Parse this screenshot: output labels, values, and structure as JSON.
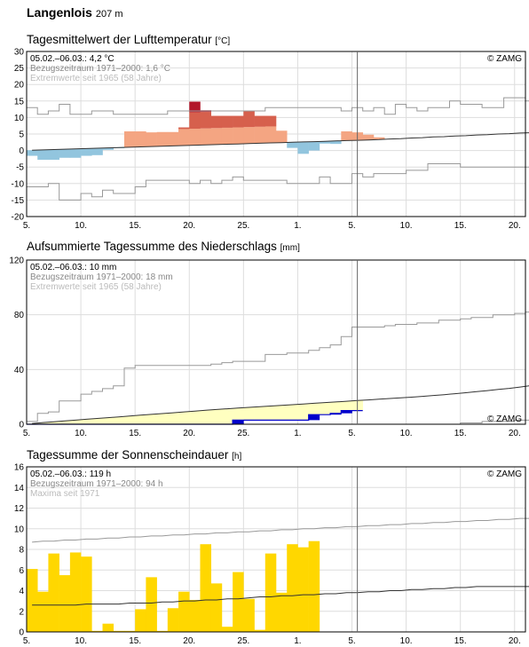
{
  "station": {
    "name": "Langenlois",
    "altitude": "207 m"
  },
  "panels": [
    {
      "id": "temp",
      "title": "Tagesmittelwert der Lufttemperatur",
      "unit": "[°C]",
      "legend": [
        "05.02.–06.03.: 4,2 °C",
        "Bezugszeitraum 1971–2000: 1,6 °C",
        "Extremwerte seit 1965 (58 Jahre)"
      ],
      "copyright": "© ZAMG"
    },
    {
      "id": "precip",
      "title": "Aufsummierte Tagessumme des Niederschlags",
      "unit": "[mm]",
      "legend": [
        "05.02.–06.03.: 10 mm",
        "Bezugszeitraum 1971–2000: 18 mm",
        "Extremwerte seit 1965 (58 Jahre)"
      ],
      "copyright": "© ZAMG"
    },
    {
      "id": "sun",
      "title": "Tagessumme der Sonnenscheindauer",
      "unit": "[h]",
      "legend": [
        "05.02.–06.03.: 119 h",
        "Bezugszeitraum 1971–2000: 94 h",
        "Maxima seit 1971"
      ],
      "copyright": "© ZAMG"
    }
  ],
  "colors": {
    "warm_light": "#f4a582",
    "warm_mid": "#d6604d",
    "warm_dark": "#b2182b",
    "cold": "#92c5de",
    "precip_fill": "#ffffc0",
    "precip_line": "#0000cc",
    "precip_bar": "#0000cc",
    "sun_bar": "#ffd700",
    "grid": "#dddddd"
  },
  "chart_data": [
    {
      "type": "bar",
      "x_tick_labels": [
        "5.",
        "10.",
        "15.",
        "20.",
        "25.",
        "1.",
        "5.",
        "10.",
        "15.",
        "20."
      ],
      "xlim_days": [
        0,
        46
      ],
      "today_marker_day": 30.5,
      "ylim": [
        -20,
        30
      ],
      "yticks": [
        -20,
        -15,
        -10,
        -5,
        0,
        5,
        10,
        15,
        20,
        25,
        30
      ],
      "values": [
        -1.6,
        -2.8,
        -2.8,
        -2.2,
        -2.2,
        -1.6,
        -1.4,
        0.2,
        0.7,
        5.8,
        5.8,
        5.5,
        5.6,
        5.6,
        7.0,
        14.8,
        12.2,
        10.5,
        10.5,
        10.5,
        12.0,
        10.5,
        10.5,
        6.0,
        0.8,
        -1.0,
        0.0,
        2.1,
        2.0,
        5.8,
        5.5,
        4.8,
        4.0
      ],
      "climate_mean": [
        0.1,
        0.2,
        0.3,
        0.4,
        0.5,
        0.6,
        0.7,
        0.8,
        0.9,
        1.0,
        1.1,
        1.2,
        1.3,
        1.4,
        1.5,
        1.6,
        1.7,
        1.8,
        1.9,
        2.0,
        2.1,
        2.2,
        2.3,
        2.4,
        2.5,
        2.6,
        2.7,
        2.8,
        2.9,
        3.0,
        3.1,
        3.2,
        3.3,
        3.5,
        3.6,
        3.8,
        3.9,
        4.1,
        4.2,
        4.4,
        4.5,
        4.7,
        4.8,
        5.0,
        5.1,
        5.3,
        5.4
      ],
      "extreme_max": [
        13,
        11,
        12,
        14,
        11,
        11,
        12,
        12,
        11,
        11,
        11,
        11,
        11,
        12,
        12,
        12,
        12,
        12,
        12,
        12,
        12,
        12,
        13,
        13,
        13,
        13,
        13,
        13,
        13,
        12,
        13,
        12,
        13,
        11,
        14,
        13,
        12,
        13,
        13,
        15,
        14,
        14,
        13,
        13,
        16,
        16,
        15
      ],
      "extreme_min": [
        -11,
        -11,
        -10,
        -15,
        -15,
        -13,
        -14,
        -12,
        -13,
        -13,
        -11,
        -9,
        -9,
        -9,
        -9,
        -10,
        -9,
        -10,
        -9,
        -8,
        -9,
        -9,
        -9,
        -9,
        -10,
        -10,
        -10,
        -8,
        -10,
        -10,
        -7,
        -8,
        -7,
        -7,
        -7,
        -6,
        -6,
        -4,
        -4,
        -4,
        -5,
        -5,
        -5,
        -5,
        -5,
        -5,
        -5
      ]
    },
    {
      "type": "area",
      "ylim": [
        0,
        120
      ],
      "yticks": [
        0,
        40,
        80,
        120
      ],
      "cumulative_observed": [
        0,
        0,
        0,
        0,
        0,
        0,
        0,
        0,
        0,
        0,
        0,
        0,
        0,
        0,
        0,
        0,
        0,
        0,
        0,
        3,
        3,
        3,
        3,
        3,
        3,
        3,
        7,
        7,
        8,
        10,
        10
      ],
      "climate_mean": [
        0.5,
        1.2,
        1.8,
        2.4,
        3.0,
        3.6,
        4.2,
        4.8,
        5.4,
        6.0,
        6.6,
        7.2,
        7.8,
        8.4,
        9.0,
        9.6,
        10.2,
        10.8,
        11.3,
        11.8,
        12.3,
        12.8,
        13.3,
        13.8,
        14.3,
        14.8,
        15.3,
        15.8,
        16.3,
        16.8,
        17.3,
        17.8,
        18.3,
        18.8,
        19.3,
        19.8,
        20.4,
        21.0,
        21.6,
        22.3,
        23.0,
        23.8,
        24.6,
        25.4,
        26.2,
        27.2,
        28.2
      ],
      "extreme_max": [
        2,
        8,
        9,
        17,
        17,
        22,
        24,
        26,
        28,
        41,
        43,
        43,
        43,
        43,
        43,
        43,
        43,
        44,
        45,
        46,
        46,
        46,
        51,
        51,
        52,
        52,
        54,
        56,
        58,
        64,
        71,
        71,
        71,
        72,
        73,
        73,
        74,
        74,
        76,
        76,
        77,
        78,
        78,
        80,
        80,
        81,
        82
      ],
      "extreme_min": [
        0,
        0,
        0,
        0,
        0,
        0,
        0,
        0,
        0,
        0,
        0,
        0,
        0,
        0,
        0,
        0,
        0,
        0,
        0,
        0,
        0,
        0,
        0,
        0,
        0,
        0,
        0,
        0,
        0,
        0,
        0,
        0,
        0,
        0,
        0,
        0,
        0,
        0,
        0,
        0,
        1,
        1,
        2,
        2,
        2,
        3,
        3
      ]
    },
    {
      "type": "bar",
      "ylim": [
        0,
        16
      ],
      "yticks": [
        0,
        2,
        4,
        6,
        8,
        10,
        12,
        14,
        16
      ],
      "values": [
        6.1,
        3.9,
        7.6,
        5.5,
        7.7,
        7.3,
        0.1,
        0.8,
        0.1,
        0.1,
        2.2,
        5.3,
        0.1,
        2.3,
        3.9,
        3.1,
        8.5,
        4.7,
        0.5,
        5.8,
        3.2,
        0.2,
        7.6,
        3.8,
        8.5,
        8.2,
        8.8
      ],
      "climate_mean": [
        2.6,
        2.6,
        2.6,
        2.6,
        2.6,
        2.7,
        2.7,
        2.7,
        2.7,
        2.8,
        2.8,
        2.8,
        2.9,
        2.9,
        3.0,
        3.0,
        3.1,
        3.1,
        3.2,
        3.2,
        3.3,
        3.4,
        3.4,
        3.5,
        3.5,
        3.6,
        3.6,
        3.7,
        3.7,
        3.8,
        3.8,
        3.9,
        3.9,
        4.0,
        4.0,
        4.1,
        4.1,
        4.2,
        4.2,
        4.3,
        4.3,
        4.4,
        4.4,
        4.4,
        4.4,
        4.4,
        4.4
      ],
      "maximum": [
        8.7,
        8.8,
        8.8,
        8.9,
        8.9,
        9.0,
        9.0,
        9.1,
        9.1,
        9.2,
        9.2,
        9.3,
        9.3,
        9.4,
        9.4,
        9.5,
        9.5,
        9.6,
        9.6,
        9.7,
        9.7,
        9.8,
        9.8,
        9.9,
        9.9,
        10.0,
        10.0,
        10.1,
        10.1,
        10.2,
        10.2,
        10.3,
        10.3,
        10.4,
        10.4,
        10.5,
        10.5,
        10.6,
        10.6,
        10.7,
        10.7,
        10.8,
        10.8,
        10.9,
        10.9,
        11.0,
        11.0
      ]
    }
  ]
}
